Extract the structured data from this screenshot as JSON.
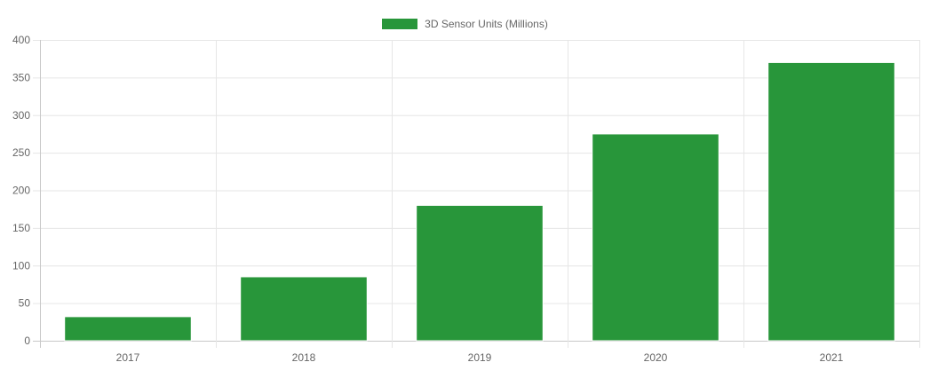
{
  "chart_data": {
    "type": "bar",
    "categories": [
      "2017",
      "2018",
      "2019",
      "2020",
      "2021"
    ],
    "series": [
      {
        "name": "3D Sensor Units (Millions)",
        "values": [
          32,
          85,
          180,
          275,
          370
        ],
        "color": "#28963a"
      }
    ],
    "ylim": [
      0,
      400
    ],
    "yticks": [
      0,
      50,
      100,
      150,
      200,
      250,
      300,
      350,
      400
    ],
    "grid": true,
    "legend_position": "top-center"
  }
}
